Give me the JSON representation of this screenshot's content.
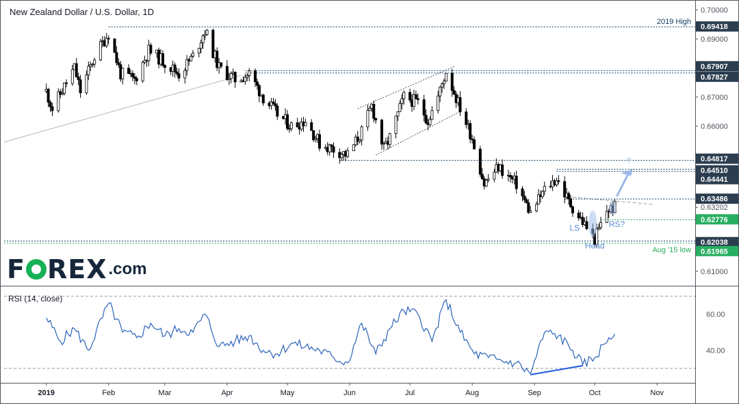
{
  "title": "New Zealand Dollar / U.S. Dollar, 1D",
  "logo": {
    "brand_left": "F",
    "brand_right": "REX",
    "suffix": ".com",
    "colors": {
      "text": "#16273b",
      "accent": "#17b158"
    }
  },
  "rsi_label": "RSI (14, close)",
  "colors": {
    "bull": "#ffffff",
    "bear": "#000000",
    "blue": "#1565c0",
    "green": "#27ae60",
    "navy": "#2b3d4f",
    "level_line": "#0b3a5e",
    "rsi_line": "#2962b8",
    "annotation": "#5b8ad6"
  },
  "chart_data": [
    {
      "type": "candlestick",
      "title": "New Zealand Dollar / U.S. Dollar, 1D",
      "ylim": [
        0.605,
        0.702
      ],
      "y_ticks": [
        "0.70000",
        "0.69000",
        "0.67000",
        "0.66000",
        "0.63202",
        "0.61000"
      ],
      "x_ticks": [
        "2019",
        "Feb",
        "Mar",
        "Apr",
        "May",
        "Jun",
        "Jul",
        "Aug",
        "Sep",
        "Oct",
        "Nov"
      ],
      "price_path": [
        {
          "date": "2019-01-01",
          "price": 0.672
        },
        {
          "date": "2019-01-04",
          "price": 0.666
        },
        {
          "date": "2019-01-15",
          "price": 0.68
        },
        {
          "date": "2019-01-18",
          "price": 0.672
        },
        {
          "date": "2019-01-25",
          "price": 0.684
        },
        {
          "date": "2019-02-01",
          "price": 0.692
        },
        {
          "date": "2019-02-07",
          "price": 0.678
        },
        {
          "date": "2019-02-14",
          "price": 0.676
        },
        {
          "date": "2019-02-21",
          "price": 0.686
        },
        {
          "date": "2019-03-01",
          "price": 0.682
        },
        {
          "date": "2019-03-08",
          "price": 0.678
        },
        {
          "date": "2019-03-15",
          "price": 0.684
        },
        {
          "date": "2019-03-21",
          "price": 0.693
        },
        {
          "date": "2019-03-28",
          "price": 0.68
        },
        {
          "date": "2019-04-05",
          "price": 0.676
        },
        {
          "date": "2019-04-12",
          "price": 0.678
        },
        {
          "date": "2019-04-19",
          "price": 0.67
        },
        {
          "date": "2019-04-26",
          "price": 0.664
        },
        {
          "date": "2019-05-03",
          "price": 0.66
        },
        {
          "date": "2019-05-10",
          "price": 0.662
        },
        {
          "date": "2019-05-17",
          "price": 0.654
        },
        {
          "date": "2019-05-24",
          "price": 0.652
        },
        {
          "date": "2019-05-31",
          "price": 0.65
        },
        {
          "date": "2019-06-07",
          "price": 0.658
        },
        {
          "date": "2019-06-12",
          "price": 0.667
        },
        {
          "date": "2019-06-18",
          "price": 0.652
        },
        {
          "date": "2019-06-21",
          "price": 0.656
        },
        {
          "date": "2019-06-28",
          "price": 0.67
        },
        {
          "date": "2019-07-05",
          "price": 0.668
        },
        {
          "date": "2019-07-10",
          "price": 0.662
        },
        {
          "date": "2019-07-15",
          "price": 0.67
        },
        {
          "date": "2019-07-19",
          "price": 0.679
        },
        {
          "date": "2019-07-25",
          "price": 0.668
        },
        {
          "date": "2019-08-01",
          "price": 0.656
        },
        {
          "date": "2019-08-07",
          "price": 0.64
        },
        {
          "date": "2019-08-14",
          "price": 0.646
        },
        {
          "date": "2019-08-23",
          "price": 0.64
        },
        {
          "date": "2019-08-30",
          "price": 0.63
        },
        {
          "date": "2019-09-06",
          "price": 0.638
        },
        {
          "date": "2019-09-12",
          "price": 0.642
        },
        {
          "date": "2019-09-18",
          "price": 0.634
        },
        {
          "date": "2019-09-25",
          "price": 0.627
        },
        {
          "date": "2019-10-01",
          "price": 0.621
        },
        {
          "date": "2019-10-07",
          "price": 0.631
        },
        {
          "date": "2019-10-11",
          "price": 0.632
        }
      ],
      "levels": [
        {
          "price": 0.69418,
          "label": "0.69418",
          "note": "2019 High",
          "style": "navy"
        },
        {
          "price": 0.67907,
          "label": "0.67907",
          "style": "navy"
        },
        {
          "price": 0.67827,
          "label": "0.67827",
          "style": "navy"
        },
        {
          "price": 0.64817,
          "label": "0.64817",
          "style": "navy"
        },
        {
          "price": 0.6451,
          "label": "0.64510",
          "style": "navy"
        },
        {
          "price": 0.64441,
          "label": "0.64441",
          "style": "navy"
        },
        {
          "price": 0.63486,
          "label": "0.63486",
          "style": "navy"
        },
        {
          "price": 0.62776,
          "label": "0.62776",
          "style": "green"
        },
        {
          "price": 0.62038,
          "label": "0.62038",
          "style": "navy"
        },
        {
          "price": 0.61965,
          "label": "0.61965",
          "note": "Aug '15 low",
          "style": "green"
        }
      ],
      "annotations": [
        "LS",
        "Head",
        "RS?",
        "?"
      ]
    },
    {
      "type": "line",
      "title": "RSI (14, close)",
      "ylim": [
        22,
        75
      ],
      "y_ticks": [
        "60.00",
        "40.00"
      ],
      "guide_levels": [
        70,
        30
      ],
      "x": [
        "2019-01-01",
        "2019-01-08",
        "2019-01-15",
        "2019-01-22",
        "2019-02-01",
        "2019-02-08",
        "2019-02-15",
        "2019-02-22",
        "2019-03-01",
        "2019-03-08",
        "2019-03-15",
        "2019-03-21",
        "2019-03-28",
        "2019-04-05",
        "2019-04-12",
        "2019-04-19",
        "2019-04-26",
        "2019-05-03",
        "2019-05-10",
        "2019-05-17",
        "2019-05-24",
        "2019-05-31",
        "2019-06-07",
        "2019-06-14",
        "2019-06-21",
        "2019-06-28",
        "2019-07-05",
        "2019-07-12",
        "2019-07-19",
        "2019-07-26",
        "2019-08-02",
        "2019-08-09",
        "2019-08-16",
        "2019-08-23",
        "2019-08-30",
        "2019-09-06",
        "2019-09-13",
        "2019-09-20",
        "2019-09-25",
        "2019-10-01",
        "2019-10-08",
        "2019-10-11"
      ],
      "values": [
        58,
        45,
        52,
        40,
        66,
        50,
        47,
        55,
        48,
        52,
        50,
        60,
        42,
        45,
        48,
        40,
        38,
        44,
        42,
        40,
        36,
        33,
        55,
        38,
        52,
        62,
        60,
        45,
        68,
        50,
        38,
        36,
        34,
        33,
        27,
        50,
        48,
        40,
        32,
        36,
        47,
        49
      ]
    }
  ]
}
